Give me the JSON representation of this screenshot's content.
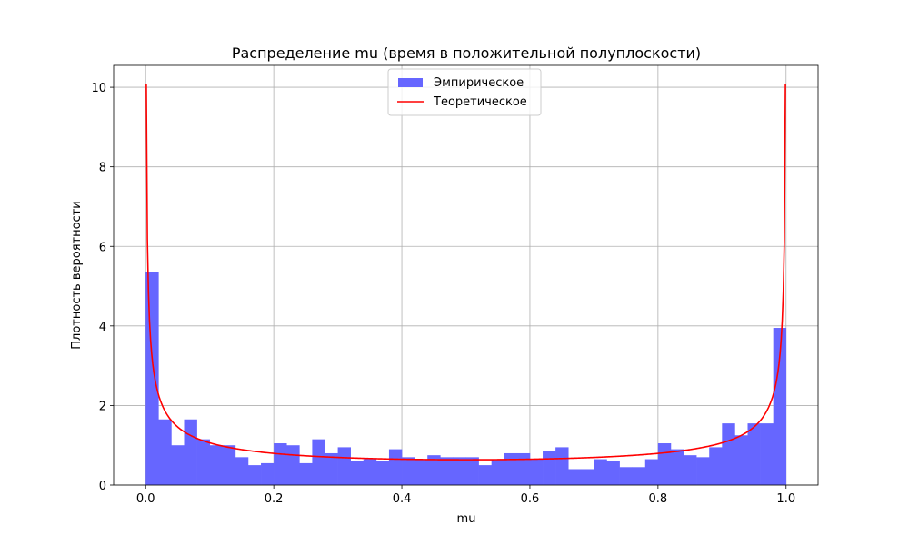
{
  "chart_data": {
    "type": "bar",
    "title": "Распределение mu (время в положительной полуплоскости)",
    "xlabel": "mu",
    "ylabel": "Плотность вероятности",
    "xlim": [
      -0.05,
      1.05
    ],
    "ylim": [
      0,
      10.55
    ],
    "xticks": [
      0.0,
      0.2,
      0.4,
      0.6,
      0.8,
      1.0
    ],
    "xtick_labels": [
      "0.0",
      "0.2",
      "0.4",
      "0.6",
      "0.8",
      "1.0"
    ],
    "yticks": [
      0,
      2,
      4,
      6,
      8,
      10
    ],
    "ytick_labels": [
      "0",
      "2",
      "4",
      "6",
      "8",
      "10"
    ],
    "grid": true,
    "legend_position": "upper center",
    "series": [
      {
        "name": "Эмпирическое",
        "kind": "histogram",
        "color": "#6666ff",
        "bin_start": 0.0,
        "bin_width": 0.02,
        "values": [
          5.35,
          1.65,
          1.0,
          1.65,
          1.15,
          1.0,
          1.0,
          0.7,
          0.5,
          0.55,
          1.05,
          1.0,
          0.55,
          1.15,
          0.8,
          0.95,
          0.6,
          0.65,
          0.6,
          0.9,
          0.7,
          0.65,
          0.75,
          0.7,
          0.7,
          0.7,
          0.5,
          0.65,
          0.8,
          0.8,
          0.65,
          0.85,
          0.95,
          0.4,
          0.4,
          0.65,
          0.6,
          0.45,
          0.45,
          0.65,
          1.05,
          0.9,
          0.75,
          0.7,
          0.95,
          1.55,
          1.25,
          1.55,
          1.55,
          3.95
        ]
      },
      {
        "name": "Теоретическое",
        "kind": "line",
        "color": "#ff0000",
        "function": "1/(pi*sqrt(x*(1-x)))",
        "x_range": [
          0.001,
          0.999
        ]
      }
    ]
  }
}
